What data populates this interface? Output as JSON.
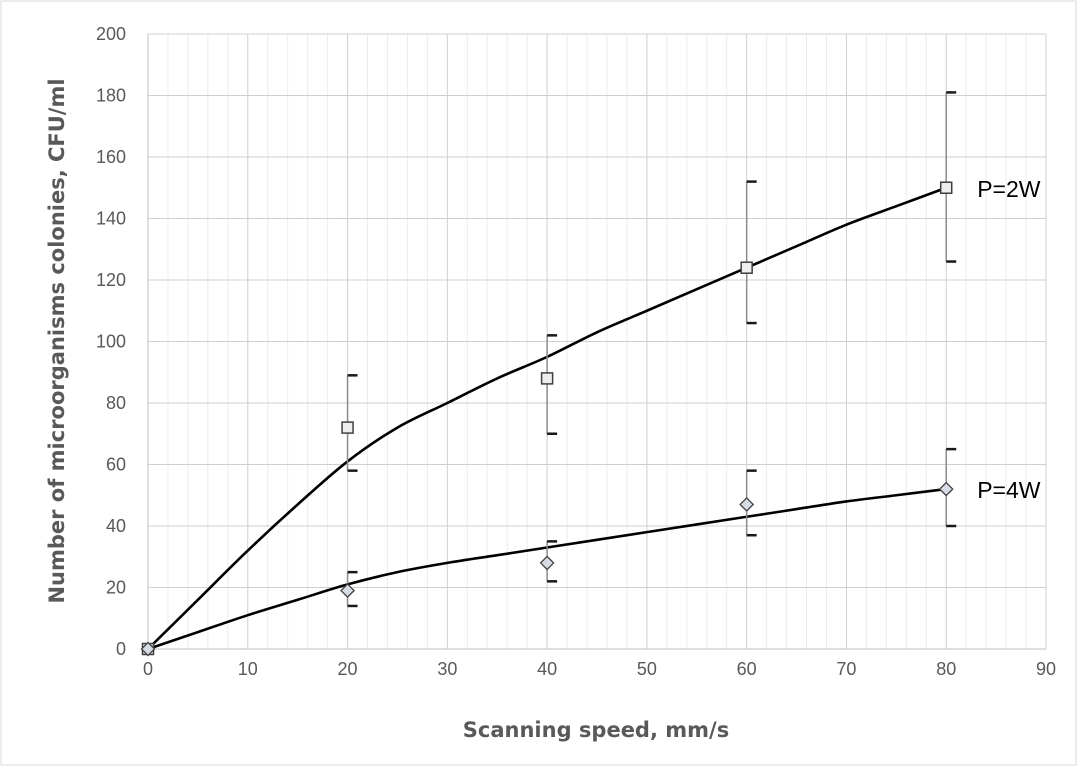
{
  "chart_data": {
    "type": "scatter",
    "title": "",
    "xlabel": "Scanning speed, mm/s",
    "ylabel": "Number of microorganisms colonies, CFU/ml",
    "xlim": [
      0,
      90
    ],
    "ylim": [
      0,
      200
    ],
    "x_ticks": [
      "0",
      "10",
      "20",
      "30",
      "40",
      "50",
      "60",
      "70",
      "80",
      "90"
    ],
    "y_ticks": [
      "0",
      "20",
      "40",
      "60",
      "80",
      "100",
      "120",
      "140",
      "160",
      "180",
      "200"
    ],
    "grid": true,
    "minor_x_grid": true,
    "series": [
      {
        "name": "P=2W",
        "marker": "square",
        "x": [
          0,
          20,
          40,
          60,
          80
        ],
        "y": [
          0,
          72,
          88,
          124,
          150
        ],
        "error_low": [
          0,
          14,
          18,
          18,
          24
        ],
        "error_high": [
          0,
          17,
          14,
          28,
          31
        ],
        "trendline_x": [
          0,
          5,
          10,
          15,
          20,
          25,
          30,
          35,
          40,
          45,
          50,
          55,
          60,
          65,
          70,
          75,
          80
        ],
        "trendline_y": [
          0,
          16,
          32,
          47,
          61,
          72,
          80,
          88,
          95,
          103,
          110,
          117,
          124,
          131,
          138,
          144,
          150
        ]
      },
      {
        "name": "P=4W",
        "marker": "diamond",
        "x": [
          0,
          20,
          40,
          60,
          80
        ],
        "y": [
          0,
          19,
          28,
          47,
          52
        ],
        "error_low": [
          0,
          5,
          6,
          10,
          12
        ],
        "error_high": [
          0,
          6,
          7,
          11,
          13
        ],
        "trendline_x": [
          0,
          5,
          10,
          15,
          20,
          25,
          30,
          35,
          40,
          45,
          50,
          55,
          60,
          65,
          70,
          75,
          80
        ],
        "trendline_y": [
          0,
          5.5,
          11,
          16,
          21,
          25,
          28,
          30.5,
          33,
          35.5,
          38,
          40.5,
          43,
          45.5,
          48,
          50,
          52
        ]
      }
    ]
  }
}
